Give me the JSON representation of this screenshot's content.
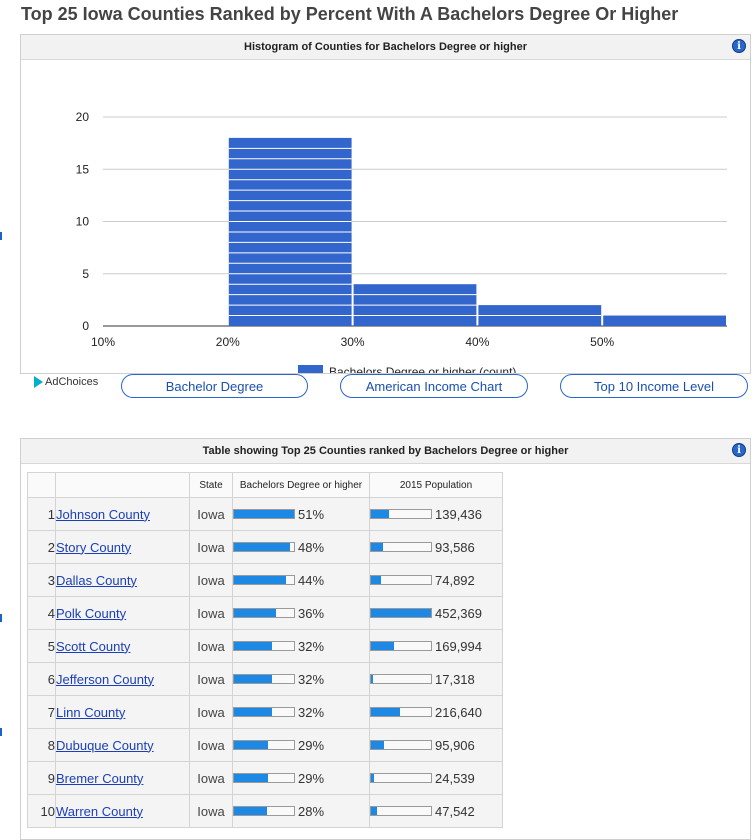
{
  "page": {
    "title": "Top 25 Iowa Counties Ranked by Percent With A Bachelors Degree Or Higher"
  },
  "histogram": {
    "header": "Histogram of Counties for Bachelors Degree or higher",
    "info_icon": "info-icon"
  },
  "chart_data": {
    "type": "bar",
    "title": "Histogram of Counties for Bachelors Degree or higher",
    "x_tick_labels": [
      "10%",
      "20%",
      "30%",
      "40%",
      "50%"
    ],
    "y_tick_labels": [
      "0",
      "5",
      "10",
      "15",
      "20"
    ],
    "ylim": [
      0,
      22
    ],
    "bins": [
      {
        "from": 10,
        "to": 20,
        "count": 0
      },
      {
        "from": 20,
        "to": 30,
        "count": 18
      },
      {
        "from": 30,
        "to": 40,
        "count": 4
      },
      {
        "from": 40,
        "to": 50,
        "count": 2
      },
      {
        "from": 50,
        "to": 60,
        "count": 1
      }
    ],
    "series": [
      {
        "name": "Bachelors Degree or higher (count)",
        "color": "#3366cc"
      }
    ],
    "legend_position": "bottom",
    "grid": true
  },
  "ads": {
    "label": "AdChoices"
  },
  "links": [
    "Bachelor Degree",
    "American Income Chart",
    "Top 10 Income Level"
  ],
  "table": {
    "header": "Table showing Top 25 Counties ranked by Bachelors Degree or higher",
    "columns": [
      "",
      "",
      "State",
      "Bachelors Degree or higher",
      "2015 Population"
    ],
    "max_population": 452369,
    "rows": [
      {
        "rank": "1",
        "county": "Johnson County",
        "state": "Iowa",
        "pct": 51,
        "pct_label": "51%",
        "population": 139436,
        "population_label": "139,436"
      },
      {
        "rank": "2",
        "county": "Story County",
        "state": "Iowa",
        "pct": 48,
        "pct_label": "48%",
        "population": 93586,
        "population_label": "93,586"
      },
      {
        "rank": "3",
        "county": "Dallas County",
        "state": "Iowa",
        "pct": 44,
        "pct_label": "44%",
        "population": 74892,
        "population_label": "74,892"
      },
      {
        "rank": "4",
        "county": "Polk County",
        "state": "Iowa",
        "pct": 36,
        "pct_label": "36%",
        "population": 452369,
        "population_label": "452,369"
      },
      {
        "rank": "5",
        "county": "Scott County",
        "state": "Iowa",
        "pct": 32,
        "pct_label": "32%",
        "population": 169994,
        "population_label": "169,994"
      },
      {
        "rank": "6",
        "county": "Jefferson County",
        "state": "Iowa",
        "pct": 32,
        "pct_label": "32%",
        "population": 17318,
        "population_label": "17,318"
      },
      {
        "rank": "7",
        "county": "Linn County",
        "state": "Iowa",
        "pct": 32,
        "pct_label": "32%",
        "population": 216640,
        "population_label": "216,640"
      },
      {
        "rank": "8",
        "county": "Dubuque County",
        "state": "Iowa",
        "pct": 29,
        "pct_label": "29%",
        "population": 95906,
        "population_label": "95,906"
      },
      {
        "rank": "9",
        "county": "Bremer County",
        "state": "Iowa",
        "pct": 29,
        "pct_label": "29%",
        "population": 24539,
        "population_label": "24,539"
      },
      {
        "rank": "10",
        "county": "Warren County",
        "state": "Iowa",
        "pct": 28,
        "pct_label": "28%",
        "population": 47542,
        "population_label": "47,542"
      }
    ]
  },
  "colors": {
    "bar": "#3366cc",
    "progress": "#1e88e5",
    "link": "#1a3fb8",
    "info": "#2a66c8"
  }
}
